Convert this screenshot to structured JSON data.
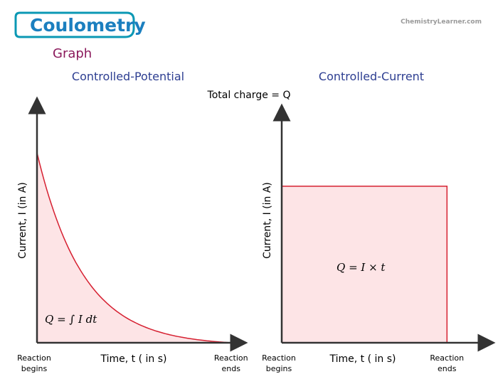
{
  "header": {
    "title": "Coulometry",
    "subtitle": "Graph",
    "watermark": "ChemistryLearner.com"
  },
  "shared_annotation": "Total charge = Q",
  "colors": {
    "title_badge_fill": "#ffffff",
    "title_badge_border": "#0b98b4",
    "title_text": "#1b7fbf",
    "subtitle_text": "#8b1a5c",
    "panel_title_text": "#2d3e91",
    "curve": "#d62031",
    "fill": "#fde4e6",
    "axis": "#333333",
    "watermark": "#9a9a9a"
  },
  "chart_data": [
    {
      "type": "area",
      "title": "Controlled-Potential",
      "xlabel": "Time, t ( in s)",
      "ylabel": "Current, I (in A)",
      "x_tick_labels": [
        {
          "line1": "Reaction",
          "line2": "begins"
        },
        {
          "line1": "Reaction",
          "line2": "ends"
        }
      ],
      "x_marker": "tick",
      "curve": "exponential-decay",
      "x": [
        0,
        0.1,
        0.2,
        0.3,
        0.4,
        0.5,
        0.6,
        0.7,
        0.8,
        0.9,
        1.0
      ],
      "y": [
        1.0,
        0.66,
        0.44,
        0.29,
        0.19,
        0.12,
        0.077,
        0.047,
        0.025,
        0.01,
        0.0
      ],
      "xlim": [
        0,
        1.1
      ],
      "ylim": [
        0,
        1.25
      ],
      "shaded": true,
      "annotation": "Q = ∫ I dt"
    },
    {
      "type": "area",
      "title": "Controlled-Current",
      "xlabel": "Time, t ( in s)",
      "ylabel": "Current, I (in A)",
      "x_tick_labels": [
        {
          "line1": "Reaction",
          "line2": "begins"
        },
        {
          "line1": "Reaction",
          "line2": "ends"
        }
      ],
      "x_marker": "none",
      "curve": "constant",
      "x": [
        0,
        1.0
      ],
      "y": [
        0.71,
        0.71
      ],
      "xlim": [
        0,
        1.24
      ],
      "ylim": [
        0,
        1.0
      ],
      "shaded": true,
      "annotation": "Q = I × t"
    }
  ]
}
